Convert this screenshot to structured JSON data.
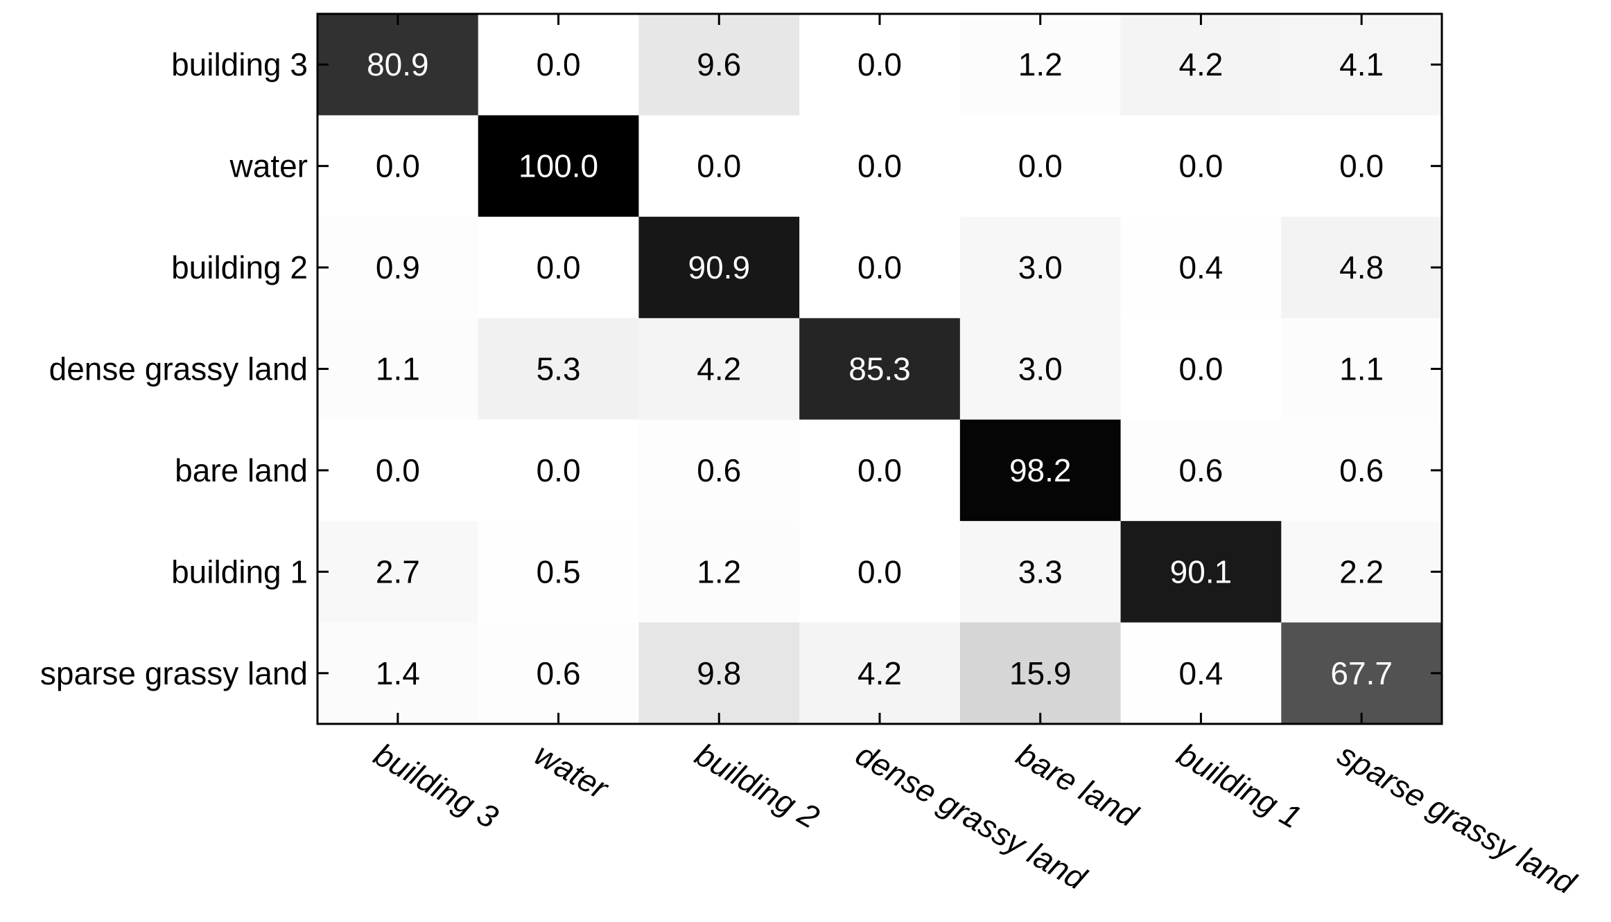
{
  "chart_data": {
    "type": "heatmap",
    "title": "",
    "xlabel": "",
    "ylabel": "",
    "row_labels": [
      "building 3",
      "water",
      "building 2",
      "dense grassy land",
      "bare land",
      "building 1",
      "sparse grassy land"
    ],
    "col_labels": [
      "building 3",
      "water",
      "building 2",
      "dense grassy land",
      "bare land",
      "building 1",
      "sparse grassy land"
    ],
    "values": [
      [
        80.9,
        0.0,
        9.6,
        0.0,
        1.2,
        4.2,
        4.1
      ],
      [
        0.0,
        100.0,
        0.0,
        0.0,
        0.0,
        0.0,
        0.0
      ],
      [
        0.9,
        0.0,
        90.9,
        0.0,
        3.0,
        0.4,
        4.8
      ],
      [
        1.1,
        5.3,
        4.2,
        85.3,
        3.0,
        0.0,
        1.1
      ],
      [
        0.0,
        0.0,
        0.6,
        0.0,
        98.2,
        0.6,
        0.6
      ],
      [
        2.7,
        0.5,
        1.2,
        0.0,
        3.3,
        90.1,
        2.2
      ],
      [
        1.4,
        0.6,
        9.8,
        4.2,
        15.9,
        0.4,
        67.7
      ]
    ],
    "value_range": [
      0,
      100
    ],
    "colormap": "gray-inverted",
    "grid": false,
    "legend": "none"
  }
}
